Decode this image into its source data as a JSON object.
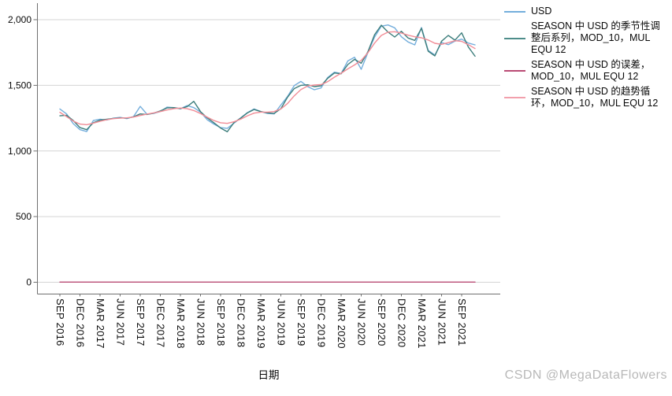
{
  "watermark": "CSDN @MegaDataFlowers",
  "legend": {
    "items": [
      {
        "color": "#74AEDC",
        "lines": [
          "USD"
        ]
      },
      {
        "color": "#4E8D8A",
        "lines": [
          "SEASON 中 USD 的季节性调",
          "整后系列，MOD_10，MUL",
          "EQU 12"
        ]
      },
      {
        "color": "#B94A73",
        "lines": [
          "SEASON 中 USD 的误差，",
          "MOD_10，MUL EQU 12"
        ]
      },
      {
        "color": "#F2A0AC",
        "lines": [
          "SEASON 中 USD 的趋势循",
          "环，MOD_10，MUL EQU 12"
        ]
      }
    ]
  },
  "chart_data": {
    "type": "line",
    "title": "",
    "xlabel": "日期",
    "ylabel": "",
    "ylim": [
      0,
      2000
    ],
    "yticks": [
      0,
      500,
      1000,
      1500,
      2000
    ],
    "ytick_labels": [
      "0",
      "500",
      "1,000",
      "1,500",
      "2,000"
    ],
    "grid": "horizontal",
    "legend_position": "right",
    "x_is_monthly": true,
    "x_first_month": "SEP 2016",
    "x_last_month": "NOV 2021",
    "tick_every_months": 3,
    "x_tick_labels": [
      "SEP 2016",
      "DEC 2016",
      "MAR 2017",
      "JUN 2017",
      "SEP 2017",
      "DEC 2017",
      "MAR 2018",
      "JUN 2018",
      "SEP 2018",
      "DEC 2018",
      "MAR 2019",
      "JUN 2019",
      "SEP 2019",
      "DEC 2019",
      "MAR 2020",
      "JUN 2020",
      "SEP 2020",
      "DEC 2020",
      "MAR 2021",
      "JUN 2021",
      "SEP 2021"
    ],
    "colors": {
      "grid": "#D4D4D4",
      "axis": "#707070",
      "text": "#0a0a0a"
    },
    "series": [
      {
        "name": "USD",
        "color": "#74AEDC",
        "values": [
          1320,
          1282,
          1208,
          1162,
          1148,
          1232,
          1242,
          1236,
          1250,
          1256,
          1246,
          1262,
          1340,
          1280,
          1286,
          1300,
          1334,
          1330,
          1322,
          1346,
          1330,
          1296,
          1238,
          1205,
          1178,
          1172,
          1212,
          1252,
          1292,
          1320,
          1300,
          1286,
          1282,
          1350,
          1415,
          1498,
          1530,
          1490,
          1466,
          1480,
          1560,
          1600,
          1590,
          1686,
          1714,
          1622,
          1750,
          1868,
          1950,
          1960,
          1938,
          1870,
          1830,
          1808,
          1940,
          1766,
          1731,
          1826,
          1810,
          1836,
          1852,
          1822,
          1808
        ]
      },
      {
        "name": "SEASON 中 USD 的季节性调整后系列，MOD_10，MUL EQU 12",
        "color": "#3D7E7C",
        "values": [
          1268,
          1272,
          1232,
          1178,
          1162,
          1215,
          1235,
          1242,
          1248,
          1252,
          1250,
          1260,
          1282,
          1278,
          1288,
          1305,
          1328,
          1330,
          1322,
          1338,
          1378,
          1300,
          1252,
          1215,
          1175,
          1146,
          1216,
          1250,
          1290,
          1316,
          1300,
          1290,
          1286,
          1322,
          1410,
          1475,
          1500,
          1504,
          1490,
          1496,
          1554,
          1594,
          1588,
          1658,
          1698,
          1668,
          1756,
          1886,
          1958,
          1906,
          1868,
          1912,
          1860,
          1842,
          1934,
          1760,
          1724,
          1836,
          1880,
          1844,
          1900,
          1792,
          1722
        ]
      },
      {
        "name": "SEASON 中 USD 的误差，MOD_10，MUL EQU 12",
        "color": "#B94A73",
        "constant": 1,
        "values": null
      },
      {
        "name": "SEASON 中 USD 的趋势循环，MOD_10，MUL EQU 12",
        "color": "#F18C96",
        "values": [
          1295,
          1262,
          1228,
          1205,
          1200,
          1212,
          1226,
          1238,
          1246,
          1250,
          1252,
          1258,
          1270,
          1281,
          1290,
          1300,
          1312,
          1322,
          1327,
          1322,
          1308,
          1285,
          1258,
          1232,
          1215,
          1210,
          1222,
          1242,
          1268,
          1288,
          1296,
          1296,
          1300,
          1320,
          1362,
          1420,
          1468,
          1495,
          1502,
          1505,
          1528,
          1562,
          1592,
          1625,
          1655,
          1690,
          1748,
          1822,
          1880,
          1905,
          1908,
          1898,
          1882,
          1870,
          1862,
          1845,
          1820,
          1812,
          1825,
          1840,
          1835,
          1810,
          1780
        ]
      }
    ]
  }
}
